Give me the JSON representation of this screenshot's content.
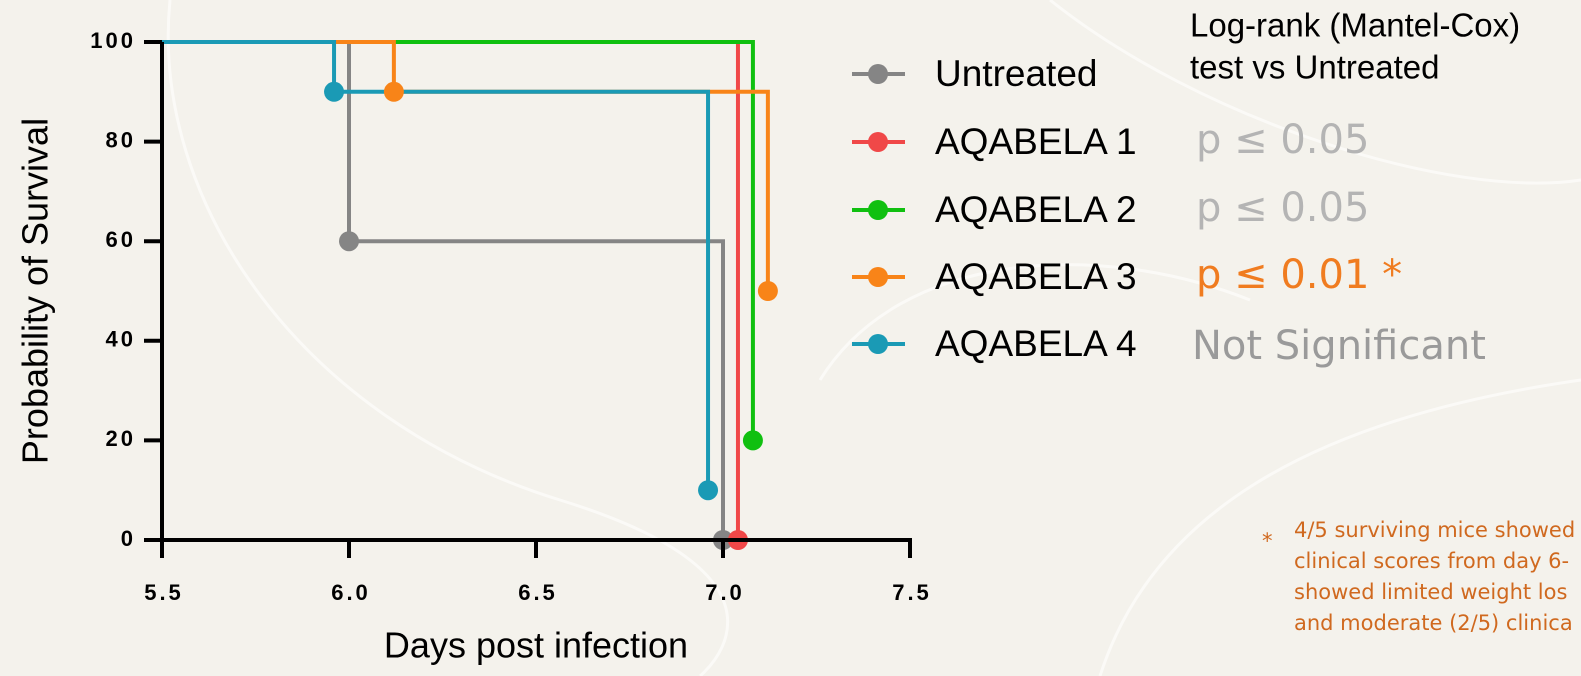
{
  "chart_data": {
    "type": "survival",
    "xlabel": "Days post infection",
    "ylabel": "Probability of Survival",
    "xlim": [
      5.5,
      7.5
    ],
    "xticks": [
      5.5,
      {
        "value": 6,
        "label": "6.0"
      },
      6.5,
      {
        "value": 7,
        "label": "7.0"
      },
      7.5
    ],
    "ylim": [
      0,
      100
    ],
    "yticks": [
      0,
      20,
      40,
      60,
      80,
      100
    ],
    "test_title": [
      "Log-rank (Mantel-Cox)",
      "test vs Untreated"
    ],
    "series": [
      {
        "name": "Untreated",
        "color": "#858585",
        "x": [
          5.5,
          6.0,
          7.0
        ],
        "values": [
          100,
          60,
          0
        ]
      },
      {
        "name": "AQABELA 1",
        "color": "#f04848",
        "x": [
          5.5,
          7.04
        ],
        "values": [
          100,
          0
        ],
        "p_label": "p ≤ 0.05",
        "p_color": "#b4b4b4"
      },
      {
        "name": "AQABELA 2",
        "color": "#10c010",
        "x": [
          5.5,
          7.08
        ],
        "values": [
          100,
          20
        ],
        "p_label": "p ≤ 0.05",
        "p_color": "#b4b4b4"
      },
      {
        "name": "AQABELA 3",
        "color": "#f88418",
        "x": [
          5.5,
          6.12,
          7.12
        ],
        "values": [
          100,
          90,
          50
        ],
        "p_label": "p ≤ 0.01 *",
        "p_color": "#f07c20"
      },
      {
        "name": "AQABELA 4",
        "color": "#1a9ab5",
        "x": [
          5.5,
          5.96,
          6.96
        ],
        "values": [
          100,
          90,
          10
        ],
        "p_label": "Not Significant",
        "p_color": "#9a9a9a"
      }
    ],
    "footnote": {
      "mark": "*",
      "lines": [
        "4/5 surviving mice showed",
        "clinical scores from day 6-",
        "showed limited weight los",
        "and moderate (2/5) clinica"
      ]
    }
  }
}
